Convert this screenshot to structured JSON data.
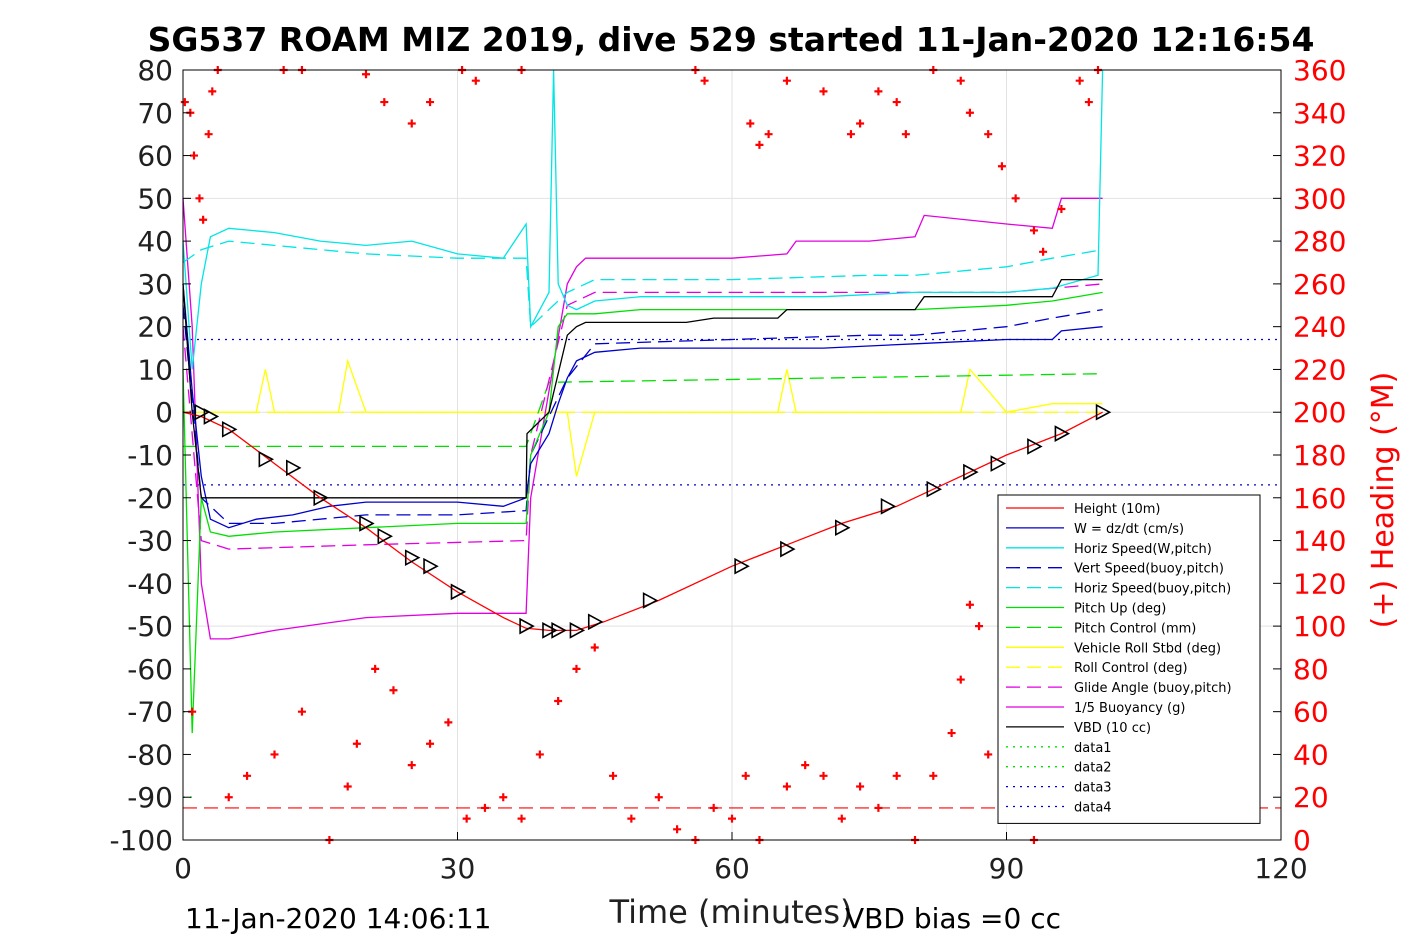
{
  "chart_data": {
    "type": "line",
    "title": "SG537 ROAM MIZ 2019, dive 529 started 11-Jan-2020 12:16:54",
    "xlabel": "Time (minutes)",
    "ylabel": "",
    "y2label": "(+) Heading (°M)",
    "xlim": [
      0,
      120
    ],
    "ylim": [
      -100,
      80
    ],
    "y2lim": [
      0,
      360
    ],
    "xticks": [
      "0",
      "30",
      "60",
      "90",
      "120"
    ],
    "yticks": [
      "-100",
      "-90",
      "-80",
      "-70",
      "-60",
      "-50",
      "-40",
      "-30",
      "-20",
      "-10",
      "0",
      "10",
      "20",
      "30",
      "40",
      "50",
      "60",
      "70",
      "80"
    ],
    "y2ticks": [
      "0",
      "20",
      "40",
      "60",
      "80",
      "100",
      "120",
      "140",
      "160",
      "180",
      "200",
      "220",
      "240",
      "260",
      "280",
      "300",
      "320",
      "340",
      "360"
    ],
    "grid": true,
    "legend_position": "bottom-right",
    "footer_left": "11-Jan-2020 14:06:11",
    "footer_right": "VBD bias =0 cc",
    "colors": {
      "height": "#ff0000",
      "w": "#0000cc",
      "horiz_w": "#00e5e5",
      "vert_buoy": "#0000cc",
      "horiz_buoy": "#00e5e5",
      "pitch_up": "#00e000",
      "pitch_control": "#00e000",
      "roll": "#ffff00",
      "roll_control": "#ffff00",
      "glide": "#e000e0",
      "buoyancy": "#e000e0",
      "vbd": "#000000",
      "data1": "#00e000",
      "data2": "#00e000",
      "data3": "#0000cc",
      "data4": "#0000cc",
      "heading": "#ff0000"
    },
    "series": [
      {
        "key": "height",
        "name": "Height (10m)",
        "style": "solid",
        "x": [
          0,
          2,
          5,
          10,
          15,
          20,
          25,
          30,
          35,
          37.5,
          40,
          43,
          46,
          52,
          60,
          66,
          72,
          78,
          84,
          90,
          96,
          100.5
        ],
        "y": [
          0,
          -1,
          -4,
          -12,
          -20,
          -27,
          -35,
          -42,
          -48,
          -50.5,
          -51,
          -51,
          -49,
          -44,
          -36,
          -31,
          -26,
          -22,
          -16,
          -10,
          -5,
          0
        ]
      },
      {
        "key": "w",
        "name": "W = dz/dt (cm/s)",
        "style": "solid",
        "x": [
          0,
          1,
          2,
          3,
          5,
          8,
          12,
          16,
          20,
          25,
          30,
          35,
          37.5,
          38,
          40,
          41,
          42,
          43,
          45,
          50,
          60,
          70,
          80,
          90,
          95,
          96,
          100.5
        ],
        "y": [
          30,
          5,
          -15,
          -25,
          -27,
          -25,
          -24,
          -22,
          -21,
          -21,
          -21,
          -22,
          -20,
          -12,
          -5,
          2,
          8,
          12,
          14,
          15,
          15,
          15,
          16,
          17,
          17,
          19,
          20
        ]
      },
      {
        "key": "horiz_w",
        "name": "Horiz Speed(W,pitch)",
        "style": "solid",
        "x": [
          0,
          1,
          2,
          3,
          5,
          10,
          15,
          20,
          25,
          30,
          35,
          37.5,
          38,
          40,
          40.5,
          41,
          42,
          43,
          45,
          50,
          60,
          70,
          80,
          90,
          95,
          100,
          100.5
        ],
        "y": [
          40,
          10,
          30,
          41,
          43,
          42,
          40,
          39,
          40,
          37,
          36,
          44,
          20,
          28,
          80,
          30,
          25,
          24,
          26,
          27,
          27,
          27,
          28,
          28,
          29,
          32,
          80
        ]
      },
      {
        "key": "vert_buoy",
        "name": "Vert Speed(buoy,pitch)",
        "style": "dash",
        "x": [
          0,
          2,
          5,
          10,
          20,
          30,
          37.5,
          38,
          42,
          45,
          60,
          75,
          80,
          90,
          95,
          100.5
        ],
        "y": [
          25,
          -20,
          -26,
          -26,
          -24,
          -24,
          -23,
          -10,
          8,
          16,
          17,
          18,
          18,
          20,
          22,
          24
        ]
      },
      {
        "key": "horiz_buoy",
        "name": "Horiz Speed(buoy,pitch)",
        "style": "dash",
        "x": [
          0,
          2,
          5,
          10,
          20,
          30,
          37.5,
          38,
          42,
          45,
          60,
          75,
          80,
          90,
          95,
          100.5
        ],
        "y": [
          35,
          38,
          40,
          39,
          37,
          36,
          36,
          20,
          28,
          31,
          31,
          32,
          32,
          34,
          36,
          38
        ]
      },
      {
        "key": "pitch_up",
        "name": "Pitch Up (deg)",
        "style": "solid",
        "x": [
          0,
          1,
          2,
          3,
          5,
          10,
          20,
          30,
          37.5,
          38,
          40,
          41,
          42,
          45,
          50,
          60,
          70,
          80,
          90,
          95,
          100.5
        ],
        "y": [
          10,
          -75,
          -20,
          -28,
          -29,
          -28,
          -27,
          -26,
          -26,
          -10,
          0,
          20,
          23,
          23,
          24,
          24,
          24,
          24,
          25,
          26,
          28
        ]
      },
      {
        "key": "pitch_control",
        "name": "Pitch Control (mm)",
        "style": "dash",
        "x": [
          0,
          2,
          5,
          37.5,
          40,
          100.5
        ],
        "y": [
          -8,
          -8,
          -8,
          -8,
          7,
          9
        ]
      },
      {
        "key": "roll",
        "name": "Vehicle Roll Stbd (deg)",
        "style": "solid",
        "x": [
          0,
          2,
          4,
          8,
          9,
          10,
          12,
          17,
          18,
          20,
          22,
          25,
          30,
          37,
          38,
          42,
          43,
          45,
          60,
          65,
          66,
          67,
          70,
          80,
          85,
          86,
          90,
          95,
          100.5
        ],
        "y": [
          0,
          0,
          0,
          0,
          10,
          0,
          0,
          0,
          12,
          0,
          0,
          0,
          0,
          0,
          0,
          0,
          -15,
          0,
          0,
          0,
          10,
          0,
          0,
          0,
          0,
          10,
          0,
          2,
          2
        ]
      },
      {
        "key": "roll_control",
        "name": "Roll Control (deg)",
        "style": "dash",
        "x": [
          0,
          100.5
        ],
        "y": [
          0,
          0
        ]
      },
      {
        "key": "glide",
        "name": "Glide Angle (buoy,pitch)",
        "style": "dash",
        "x": [
          0,
          2,
          5,
          20,
          37.5,
          38,
          42,
          45,
          60,
          80,
          90,
          100.5
        ],
        "y": [
          20,
          -30,
          -32,
          -31,
          -30,
          -10,
          25,
          28,
          28,
          28,
          28,
          30
        ]
      },
      {
        "key": "buoyancy",
        "name": "1/5 Buoyancy (g)",
        "style": "solid",
        "x": [
          0,
          1,
          2,
          3,
          5,
          10,
          20,
          30,
          37.5,
          38,
          42,
          43,
          44,
          45,
          55,
          60,
          66,
          67,
          75,
          80,
          81,
          90,
          95,
          96,
          100.5
        ],
        "y": [
          50,
          20,
          -40,
          -53,
          -53,
          -51,
          -48,
          -47,
          -47,
          -20,
          30,
          34,
          36,
          36,
          36,
          36,
          37,
          40,
          40,
          41,
          46,
          44,
          43,
          50,
          50
        ]
      },
      {
        "key": "vbd",
        "name": "VBD (10 cc)",
        "style": "solid",
        "x": [
          0,
          1,
          2,
          37.5,
          37.6,
          40,
          42,
          43,
          44,
          55,
          58,
          65,
          66,
          75,
          80,
          81,
          90,
          95,
          96,
          100.5
        ],
        "y": [
          30,
          0,
          -20,
          -20,
          -5,
          0,
          18,
          20,
          21,
          21,
          22,
          22,
          24,
          24,
          24,
          27,
          27,
          27,
          31,
          31
        ]
      },
      {
        "key": "data1",
        "name": "data1",
        "style": "dot",
        "x": [
          0,
          1
        ],
        "y": [
          -70,
          -70
        ]
      },
      {
        "key": "data2",
        "name": "data2",
        "style": "dot",
        "x": [
          0,
          1
        ],
        "y": [
          -90,
          -90
        ]
      },
      {
        "key": "data3",
        "name": "data3",
        "style": "dot",
        "x": [
          0,
          120
        ],
        "y": [
          17,
          17
        ]
      },
      {
        "key": "data4",
        "name": "data4",
        "style": "dot",
        "x": [
          0,
          120
        ],
        "y": [
          -17,
          -17
        ]
      }
    ],
    "ref_lines": [
      {
        "key": "heading_ref",
        "style": "dash",
        "color": "#ff0000",
        "axis": "y2",
        "x": [
          0,
          120
        ],
        "y": [
          15,
          15
        ]
      }
    ],
    "markers": {
      "x": [
        2,
        3,
        5,
        9,
        12,
        15,
        20,
        22,
        25,
        27,
        30,
        37.5,
        40,
        41,
        43,
        45,
        51,
        61,
        66,
        72,
        77,
        82,
        86,
        89,
        93,
        96,
        100.5
      ],
      "y": [
        0,
        -1,
        -4,
        -11,
        -13,
        -20,
        -26,
        -29,
        -34,
        -36,
        -42,
        -50,
        -51,
        -51,
        -51,
        -49,
        -44,
        -36,
        -32,
        -27,
        -22,
        -18,
        -14,
        -12,
        -8,
        -5,
        0
      ]
    },
    "heading": {
      "name": "(+) Heading (°M)",
      "axis": "y2",
      "x": [
        0.2,
        0.8,
        1.2,
        1.8,
        2.2,
        2.8,
        3.2,
        3.8,
        11,
        13,
        20,
        22,
        25,
        27,
        30.5,
        32,
        37,
        56,
        57,
        62,
        63,
        64,
        66,
        70,
        73,
        74,
        76,
        78,
        79,
        82,
        85,
        86,
        88,
        89.5,
        91,
        93,
        94,
        96,
        98,
        99,
        100,
        1,
        5,
        7,
        10,
        13,
        16,
        18,
        19,
        21,
        23,
        25,
        27,
        29,
        31,
        33,
        35,
        37,
        39,
        41,
        43,
        45,
        47,
        49,
        52,
        54,
        56,
        58,
        60,
        61.5,
        63,
        66,
        68,
        70,
        72,
        74,
        76,
        78,
        80,
        82,
        84,
        85,
        86,
        87,
        88,
        90,
        93,
        96
      ],
      "y": [
        345,
        340,
        320,
        300,
        290,
        330,
        350,
        360,
        360,
        360,
        358,
        345,
        335,
        345,
        360,
        355,
        360,
        360,
        355,
        335,
        325,
        330,
        355,
        350,
        330,
        335,
        350,
        345,
        330,
        360,
        355,
        340,
        330,
        315,
        300,
        285,
        275,
        295,
        355,
        345,
        360,
        60,
        20,
        30,
        40,
        60,
        0,
        25,
        45,
        80,
        70,
        35,
        45,
        55,
        10,
        15,
        20,
        10,
        40,
        65,
        80,
        90,
        30,
        10,
        20,
        5,
        0,
        15,
        10,
        30,
        0,
        25,
        35,
        30,
        10,
        25,
        15,
        30,
        0,
        30,
        50,
        75,
        110,
        100,
        40,
        10,
        0,
        10
      ]
    }
  }
}
